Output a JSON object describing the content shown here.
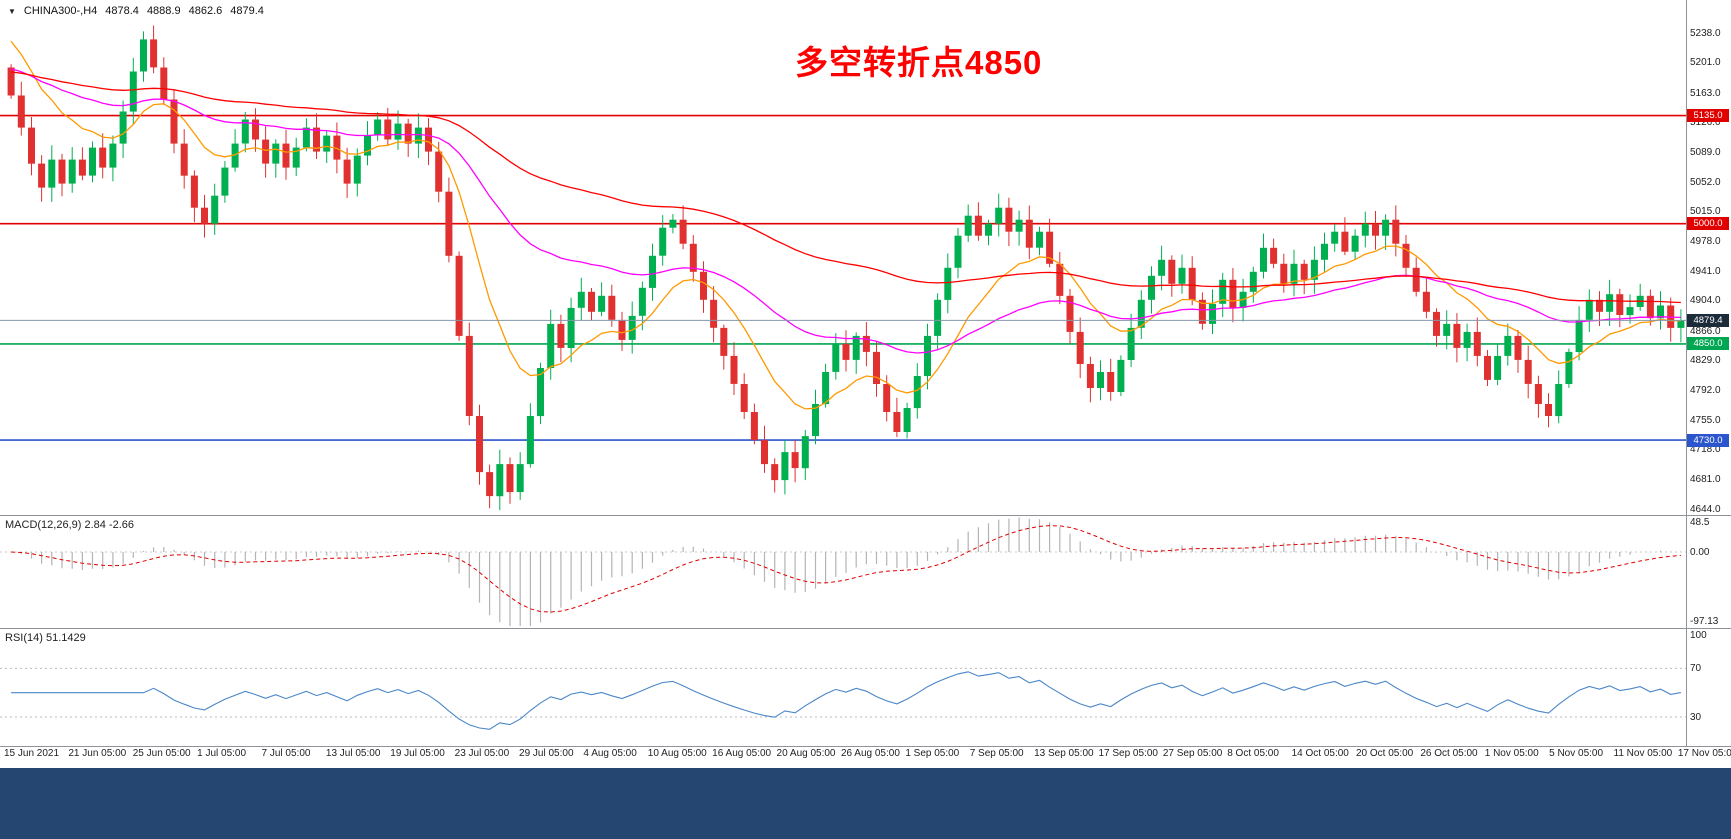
{
  "symbol_bar": {
    "direction_icon": "▼",
    "symbol_period": "CHINA300-,H4",
    "open": "4878.4",
    "high": "4888.9",
    "low": "4862.6",
    "close": "4879.4"
  },
  "annotation": {
    "text": "多空转折点4850"
  },
  "indicator_labels": {
    "macd": "MACD(12,26,9) 2.84 -2.66",
    "rsi": "RSI(14) 51.1429"
  },
  "colors": {
    "up_candle": "#00b050",
    "down_candle": "#e03030",
    "ma_fast": "#ff9900",
    "ma_mid": "#ff00ff",
    "ma_slow": "#ff0000",
    "resistance_line": "#e00000",
    "pivot_line": "#00a651",
    "support_line": "#2b55cc",
    "current_price_line": "#8496ab",
    "current_price_tag": "#1c2b3a",
    "annotation_text": "#ff0000",
    "macd_signal": "#e00000",
    "macd_histogram": "#b4b4b4",
    "rsi_line": "#4a86c8",
    "bottom_strip": "#254671"
  },
  "chart_data": {
    "type": "candlestick",
    "symbol": "CHINA300-",
    "timeframe": "H4",
    "title": "CHINA300-,H4",
    "current_ohlc": {
      "open": 4878.4,
      "high": 4888.9,
      "low": 4862.6,
      "close": 4879.4
    },
    "ylim": [
      4644.0,
      5238.0
    ],
    "closes": [
      5160,
      5120,
      5075,
      5045,
      5080,
      5050,
      5080,
      5060,
      5095,
      5070,
      5100,
      5140,
      5190,
      5230,
      5195,
      5155,
      5100,
      5060,
      5020,
      5000,
      5035,
      5070,
      5100,
      5130,
      5105,
      5075,
      5100,
      5070,
      5095,
      5120,
      5090,
      5110,
      5080,
      5050,
      5085,
      5110,
      5130,
      5105,
      5125,
      5100,
      5120,
      5090,
      5040,
      4960,
      4860,
      4760,
      4690,
      4660,
      4700,
      4665,
      4700,
      4760,
      4820,
      4875,
      4845,
      4895,
      4915,
      4890,
      4910,
      4880,
      4855,
      4885,
      4920,
      4960,
      4995,
      5005,
      4975,
      4940,
      4905,
      4870,
      4835,
      4800,
      4765,
      4730,
      4700,
      4680,
      4715,
      4695,
      4735,
      4775,
      4815,
      4850,
      4830,
      4860,
      4840,
      4800,
      4765,
      4740,
      4770,
      4810,
      4860,
      4905,
      4945,
      4985,
      5010,
      4985,
      5000,
      5020,
      4990,
      5005,
      4970,
      4990,
      4950,
      4910,
      4865,
      4825,
      4795,
      4815,
      4790,
      4830,
      4870,
      4905,
      4935,
      4955,
      4925,
      4945,
      4905,
      4875,
      4900,
      4930,
      4895,
      4915,
      4940,
      4970,
      4950,
      4925,
      4950,
      4930,
      4955,
      4975,
      4990,
      4965,
      4985,
      5000,
      4985,
      5005,
      4975,
      4945,
      4915,
      4890,
      4860,
      4875,
      4845,
      4865,
      4835,
      4805,
      4835,
      4860,
      4830,
      4800,
      4775,
      4760,
      4800,
      4840,
      4880,
      4905,
      4890,
      4912,
      4886,
      4896,
      4910,
      4882,
      4898,
      4870,
      4879.4
    ],
    "y_axis_ticks": [
      "5238.0",
      "5201.0",
      "5163.0",
      "5126.0",
      "5089.0",
      "5052.0",
      "5015.0",
      "4978.0",
      "4941.0",
      "4904.0",
      "4866.0",
      "4829.0",
      "4792.0",
      "4755.0",
      "4718.0",
      "4681.0",
      "4644.0"
    ],
    "x_labels": [
      "15 Jun 2021",
      "21 Jun 05:00",
      "25 Jun 05:00",
      "1 Jul 05:00",
      "7 Jul 05:00",
      "13 Jul 05:00",
      "19 Jul 05:00",
      "23 Jul 05:00",
      "29 Jul 05:00",
      "4 Aug 05:00",
      "10 Aug 05:00",
      "16 Aug 05:00",
      "20 Aug 05:00",
      "26 Aug 05:00",
      "1 Sep 05:00",
      "7 Sep 05:00",
      "13 Sep 05:00",
      "17 Sep 05:00",
      "27 Sep 05:00",
      "8 Oct 05:00",
      "14 Oct 05:00",
      "20 Oct 05:00",
      "26 Oct 05:00",
      "1 Nov 05:00",
      "5 Nov 05:00",
      "11 Nov 05:00",
      "17 Nov 05:00"
    ],
    "horizontal_levels": [
      {
        "value": 5135.0,
        "label": "5135.0",
        "role": "resistance"
      },
      {
        "value": 5000.0,
        "label": "5000.0",
        "role": "resistance"
      },
      {
        "value": 4879.4,
        "label": "4879.4",
        "role": "current-price"
      },
      {
        "value": 4850.0,
        "label": "4850.0",
        "role": "pivot"
      },
      {
        "value": 4730.0,
        "label": "4730.0",
        "role": "support"
      }
    ],
    "moving_averages": [
      {
        "period": 12,
        "color_key": "ma_fast"
      },
      {
        "period": 40,
        "color_key": "ma_mid"
      },
      {
        "period": 90,
        "color_key": "ma_slow"
      }
    ],
    "macd": {
      "fast": 12,
      "slow": 26,
      "signal": 9,
      "main_value": 2.84,
      "signal_value": -2.66,
      "axis_ticks": [
        "48.5",
        "0.00",
        "-97.13"
      ],
      "axis_values": [
        48.5,
        0,
        -97.13
      ]
    },
    "rsi": {
      "period": 14,
      "value": 51.1429,
      "axis_ticks": [
        "100",
        "70",
        "30"
      ],
      "axis_values": [
        100,
        70,
        30
      ],
      "levels": [
        70,
        30
      ]
    }
  }
}
